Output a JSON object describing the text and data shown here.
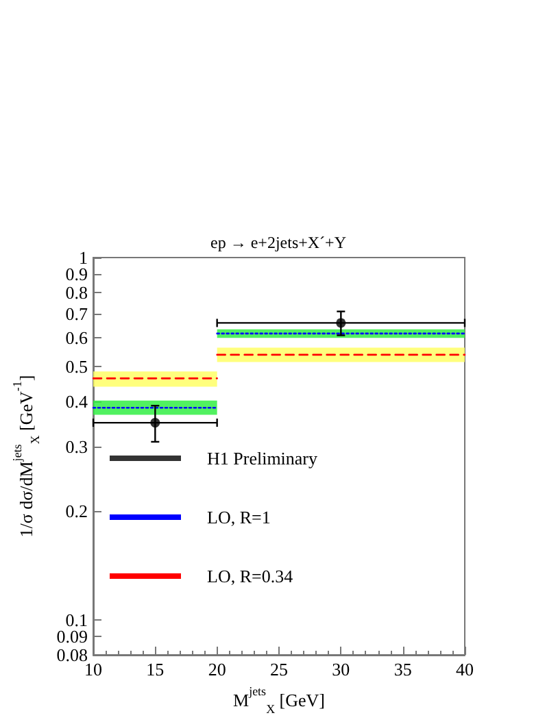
{
  "chart_data": {
    "type": "line",
    "title": "ep → e+2jets+X´+Y",
    "xlabel": "M$^{jets}$$_{X}$ [GeV]",
    "ylabel": "1/σ dσ/dM$^{jets}$$_{X}$ [GeV$^{-1}$]",
    "log": "y",
    "grid": false,
    "legend": "bottom left",
    "xlim": [
      10,
      40
    ],
    "xticks": [
      10,
      15,
      20,
      25,
      30,
      35,
      40
    ],
    "ylim": [
      0.08,
      1
    ],
    "yticks": [
      0.08,
      0.09,
      0.1,
      0.2,
      0.3,
      0.4,
      0.5,
      0.6,
      0.7,
      0.8,
      0.9,
      1
    ],
    "series": [
      {
        "name": "H1 Preliminary",
        "type": "scatter",
        "color": "#000000",
        "marker": "circle",
        "x": [
          15,
          30
        ],
        "values": [
          0.35,
          0.66
        ],
        "errors": [
          [
            0.31,
            0.39
          ],
          [
            0.61,
            0.71
          ]
        ],
        "xerrors": [
          [
            10,
            20
          ],
          [
            20,
            40
          ]
        ]
      },
      {
        "name": "LO, R=1",
        "color": "#0000ff",
        "line_style": "dotted",
        "marker": "none",
        "x": [
          10,
          20,
          20,
          40
        ],
        "values": [
          0.385,
          0.385,
          0.617,
          0.617
        ],
        "lower": [
          0.368,
          0.368,
          0.6,
          0.6
        ],
        "upper": [
          0.403,
          0.403,
          0.634,
          0.634
        ]
      },
      {
        "name": "LO, R=0.34",
        "color": "#ff0000",
        "line_style": "dashed",
        "marker": "none",
        "x": [
          10,
          20,
          20,
          40
        ],
        "values": [
          0.464,
          0.464,
          0.539,
          0.539
        ],
        "lower": [
          0.44,
          0.44,
          0.515,
          0.515
        ],
        "upper": [
          0.485,
          0.485,
          0.564,
          0.564
        ]
      }
    ]
  }
}
